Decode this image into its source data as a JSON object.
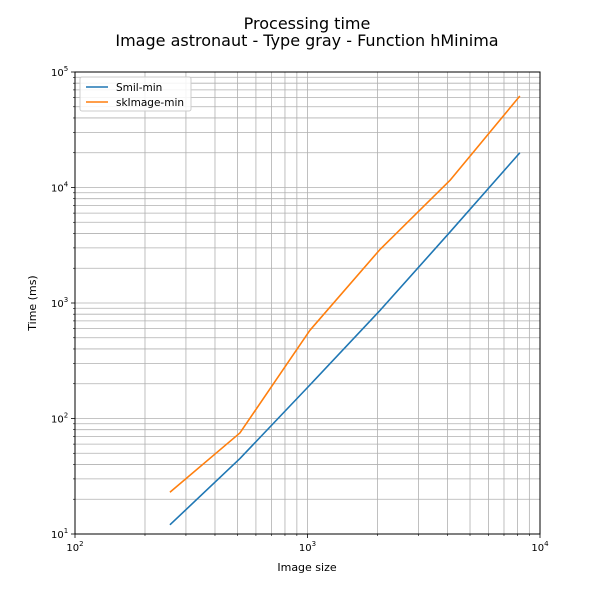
{
  "chart_data": {
    "type": "line",
    "title_line1": "Processing time",
    "title_line2": "Image astronaut - Type gray - Function hMinima",
    "xlabel": "Image size",
    "ylabel": "Time (ms)",
    "x_scale": "log",
    "y_scale": "log",
    "xlim": [
      100,
      10000
    ],
    "ylim": [
      10,
      100000
    ],
    "x_major_ticks": [
      {
        "value": 100,
        "base": "10",
        "exp": "2"
      },
      {
        "value": 1000,
        "base": "10",
        "exp": "3"
      },
      {
        "value": 10000,
        "base": "10",
        "exp": "4"
      }
    ],
    "y_major_ticks": [
      {
        "value": 10,
        "base": "10",
        "exp": "1"
      },
      {
        "value": 100,
        "base": "10",
        "exp": "2"
      },
      {
        "value": 1000,
        "base": "10",
        "exp": "3"
      },
      {
        "value": 10000,
        "base": "10",
        "exp": "4"
      },
      {
        "value": 100000,
        "base": "10",
        "exp": "5"
      }
    ],
    "grid": "major and minor",
    "legend_position": "top-left",
    "x": [
      256,
      512,
      1024,
      2048,
      4096,
      8192
    ],
    "series": [
      {
        "name": "Smil-min",
        "color": "#1f77b4",
        "values": [
          12,
          45,
          195,
          860,
          4100,
          20000
        ]
      },
      {
        "name": "skImage-min",
        "color": "#ff7f0e",
        "values": [
          23,
          75,
          580,
          2900,
          11500,
          62000
        ]
      }
    ]
  }
}
